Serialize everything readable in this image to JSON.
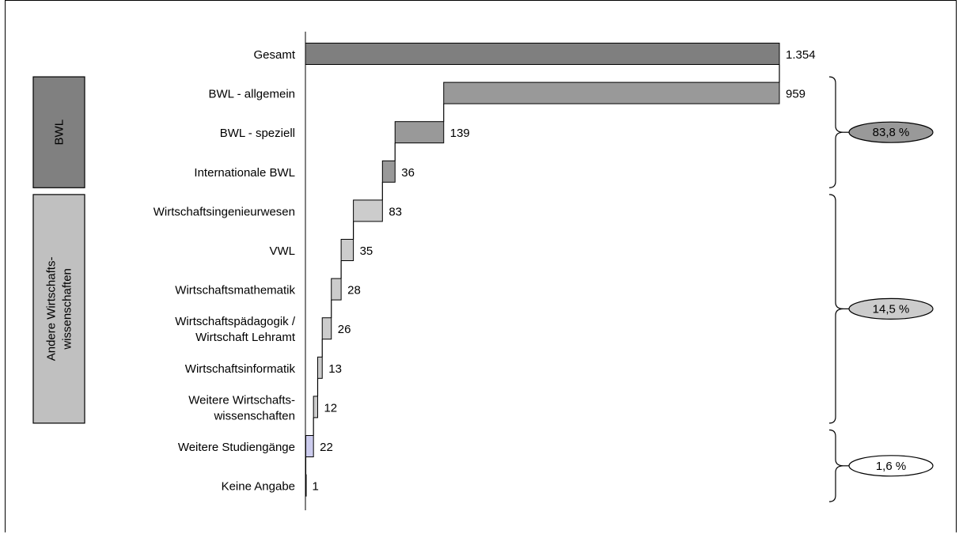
{
  "chart_data": {
    "type": "bar",
    "subtype": "waterfall",
    "categories": [
      "Gesamt",
      "BWL - allgemein",
      "BWL - speziell",
      "Internationale BWL",
      "Wirtschaftsingenieurwesen",
      "VWL",
      "Wirtschaftsmathematik",
      "Wirtschaftspädagogik / Wirtschaft Lehramt",
      "Wirtschaftsinformatik",
      "Weitere Wirtschafts- wissenschaften",
      "Weitere Studiengänge",
      "Keine Angabe"
    ],
    "category_lines": [
      [
        "Gesamt"
      ],
      [
        "BWL - allgemein"
      ],
      [
        "BWL - speziell"
      ],
      [
        "Internationale BWL"
      ],
      [
        "Wirtschaftsingenieurwesen"
      ],
      [
        "VWL"
      ],
      [
        "Wirtschaftsmathematik"
      ],
      [
        "Wirtschaftspädagogik /",
        "Wirtschaft Lehramt"
      ],
      [
        "Wirtschaftsinformatik"
      ],
      [
        "Weitere Wirtschafts-",
        "wissenschaften"
      ],
      [
        "Weitere Studiengänge"
      ],
      [
        "Keine Angabe"
      ]
    ],
    "values": [
      1354,
      959,
      139,
      36,
      83,
      35,
      28,
      26,
      13,
      12,
      22,
      1
    ],
    "value_labels": [
      "1.354",
      "959",
      "139",
      "36",
      "83",
      "35",
      "28",
      "26",
      "13",
      "12",
      "22",
      "1"
    ],
    "bar_colors": [
      "#7f7f7f",
      "#999999",
      "#999999",
      "#999999",
      "#cccccc",
      "#cccccc",
      "#cccccc",
      "#cccccc",
      "#cccccc",
      "#cccccc",
      "#ccccee",
      "#ffffff"
    ],
    "xlim": [
      0,
      1354
    ],
    "groups": [
      {
        "label": "BWL",
        "lines": [
          "BWL"
        ],
        "color": "#808080",
        "first": 1,
        "last": 3,
        "share": "83,8 %",
        "share_fill": "#999999"
      },
      {
        "label": "Andere Wirtschafts- wissenschaften",
        "lines": [
          "Andere Wirtschafts-",
          "wissenschaften"
        ],
        "color": "#c0c0c0",
        "first": 4,
        "last": 9,
        "share": "14,5 %",
        "share_fill": "#cccccc"
      },
      {
        "label": "",
        "lines": [],
        "color": "",
        "first": 10,
        "last": 11,
        "share": "1,6 %",
        "share_fill": "#ffffff"
      }
    ]
  }
}
